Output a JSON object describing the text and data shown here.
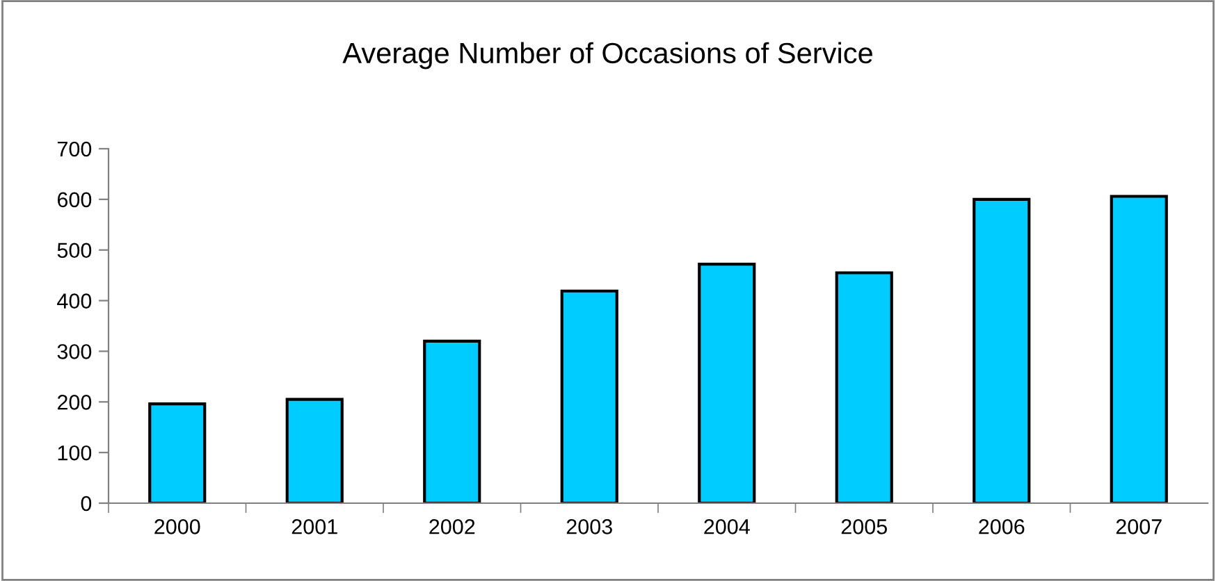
{
  "chart_data": {
    "type": "bar",
    "title": "Average Number of Occasions of Service",
    "categories": [
      "2000",
      "2001",
      "2002",
      "2003",
      "2004",
      "2005",
      "2006",
      "2007"
    ],
    "values": [
      196,
      205,
      320,
      419,
      472,
      455,
      600,
      606
    ],
    "color": "#00ccff",
    "ylim": [
      0,
      700
    ],
    "yticks": [
      0,
      100,
      200,
      300,
      400,
      500,
      600,
      700
    ],
    "grid": false,
    "legend": false
  }
}
